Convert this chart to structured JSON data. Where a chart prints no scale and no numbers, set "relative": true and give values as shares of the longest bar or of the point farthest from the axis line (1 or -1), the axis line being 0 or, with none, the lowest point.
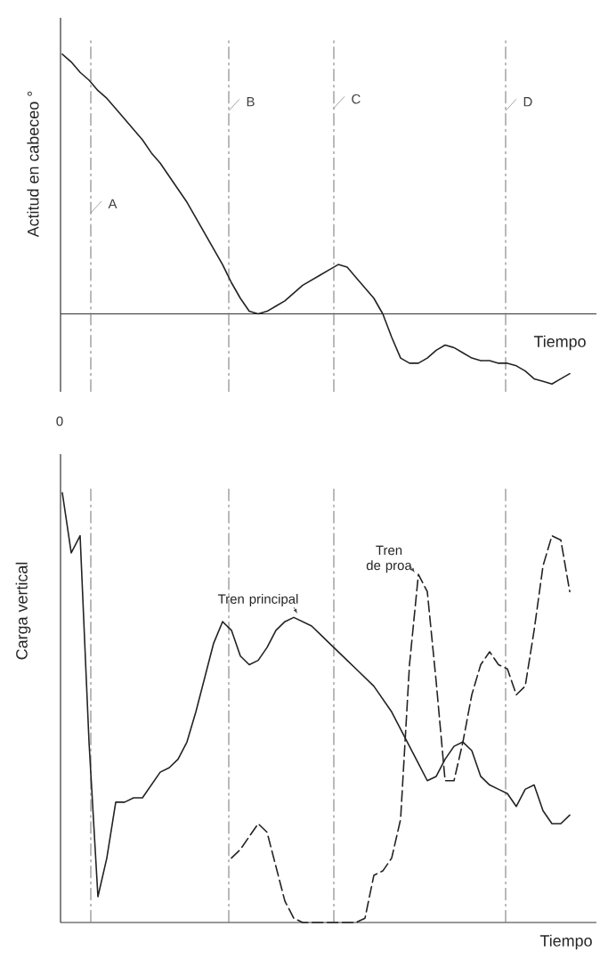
{
  "chart_data": [
    {
      "type": "line",
      "ylabel": "Actitud en cabeceo °",
      "xlabel": "Tiempo",
      "relative": true,
      "color": "#222222",
      "annotations": [
        "A",
        "B",
        "C",
        "D"
      ],
      "categories": [
        null,
        null,
        null,
        null,
        null,
        null,
        null,
        null,
        null,
        null,
        null,
        null,
        null,
        null,
        null,
        null,
        null,
        null,
        null,
        null,
        null,
        null,
        null,
        null,
        null,
        null,
        null,
        null,
        null,
        null,
        null,
        null,
        null,
        null,
        null,
        null,
        null,
        null,
        null,
        null,
        null,
        null,
        null,
        null,
        null,
        null,
        null,
        null,
        null,
        null,
        null,
        null,
        null,
        null,
        null,
        null,
        null,
        null
      ],
      "values": [
        1.0,
        0.97,
        0.93,
        0.9,
        0.86,
        0.83,
        0.79,
        0.75,
        0.71,
        0.67,
        0.62,
        0.58,
        0.53,
        0.48,
        0.43,
        0.37,
        0.31,
        0.25,
        0.19,
        0.12,
        0.06,
        0.01,
        0,
        0.01,
        0.03,
        0.05,
        0.08,
        0.11,
        0.13,
        0.15,
        0.17,
        0.19,
        0.18,
        0.14,
        0.1,
        0.06,
        0,
        -0.09,
        -0.17,
        -0.19,
        -0.19,
        -0.17,
        -0.14,
        -0.12,
        -0.13,
        -0.15,
        -0.17,
        -0.18,
        -0.18,
        -0.19,
        -0.19,
        -0.2,
        -0.22,
        -0.25,
        -0.26,
        -0.27,
        -0.25,
        -0.23
      ]
    },
    {
      "type": "line",
      "ylabel": "Carga vertical",
      "xlabel": "Tiempo",
      "relative": true,
      "annotations": [
        "0"
      ],
      "categories": [
        null,
        null,
        null,
        null,
        null,
        null,
        null,
        null,
        null,
        null,
        null,
        null,
        null,
        null,
        null,
        null,
        null,
        null,
        null,
        null,
        null,
        null,
        null,
        null,
        null,
        null,
        null,
        null,
        null,
        null,
        null,
        null,
        null,
        null,
        null,
        null,
        null,
        null,
        null,
        null,
        null,
        null,
        null,
        null,
        null,
        null,
        null,
        null,
        null,
        null,
        null,
        null,
        null,
        null,
        null,
        null,
        null,
        null
      ],
      "series": [
        {
          "name": "Tren principal",
          "color": "#222222",
          "line_style": "solid",
          "values": [
            1.0,
            0.86,
            0.9,
            0.42,
            0.06,
            0.15,
            0.28,
            0.28,
            0.29,
            0.29,
            0.32,
            0.35,
            0.36,
            0.38,
            0.42,
            0.49,
            0.57,
            0.65,
            0.7,
            0.68,
            0.62,
            0.6,
            0.61,
            0.64,
            0.68,
            0.7,
            0.71,
            0.7,
            0.69,
            0.67,
            0.65,
            0.63,
            0.61,
            0.59,
            0.57,
            0.55,
            0.52,
            0.49,
            0.45,
            0.41,
            0.37,
            0.33,
            0.34,
            0.38,
            0.41,
            0.42,
            0.4,
            0.34,
            0.32,
            0.31,
            0.3,
            0.27,
            0.31,
            0.32,
            0.26,
            0.23,
            0.23,
            0.25
          ]
        },
        {
          "name": "Tren de proa",
          "color": "#222222",
          "line_style": "dashed",
          "values": [
            null,
            null,
            null,
            null,
            null,
            null,
            null,
            null,
            null,
            null,
            null,
            null,
            null,
            null,
            null,
            null,
            null,
            null,
            null,
            0.15,
            0.17,
            0.2,
            0.23,
            0.21,
            0.13,
            0.05,
            0.01,
            0,
            0,
            0,
            0,
            0,
            0,
            0,
            0.01,
            0.11,
            0.12,
            0.15,
            0.24,
            0.6,
            0.81,
            0.77,
            0.56,
            0.33,
            0.33,
            0.42,
            0.53,
            0.6,
            0.63,
            0.6,
            0.59,
            0.53,
            0.55,
            0.68,
            0.83,
            0.9,
            0.89,
            0.77
          ]
        }
      ]
    }
  ]
}
